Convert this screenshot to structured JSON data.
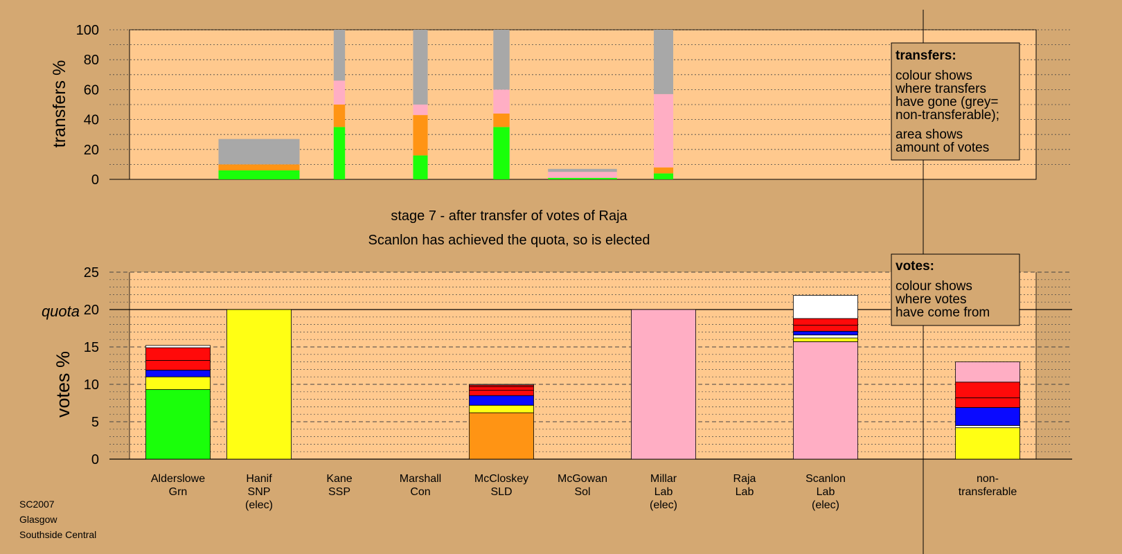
{
  "colors": {
    "page_bg": "#d4a872",
    "plot_bg": "#ffc98e",
    "green": "#1aff0a",
    "yellow": "#ffff14",
    "orange": "#ff9414",
    "pink": "#ffaec4",
    "grey": "#a8a8a8",
    "red": "#ff0a0a",
    "blue": "#0a0aff",
    "white": "#ffffff"
  },
  "caption": {
    "stage": "stage 7 - after transfer of votes of Raja",
    "result": "Scanlon has achieved the quota, so is elected"
  },
  "footer": [
    "SC2007",
    "Glasgow",
    "Southside Central"
  ],
  "legend_transfers": {
    "title": "transfers:",
    "lines": [
      "colour shows",
      "where transfers",
      "have gone (grey=",
      "non-transferable);"
    ],
    "lines2": [
      "area shows",
      "amount of votes"
    ]
  },
  "legend_votes": {
    "title": "votes:",
    "lines": [
      "colour shows",
      "where votes",
      "have come from"
    ]
  },
  "candidates": [
    [
      "Alderslowe",
      "Grn"
    ],
    [
      "Hanif",
      "SNP",
      "(elec)"
    ],
    [
      "Kane",
      "SSP"
    ],
    [
      "Marshall",
      "Con"
    ],
    [
      "McCloskey",
      "SLD"
    ],
    [
      "McGowan",
      "Sol"
    ],
    [
      "Millar",
      "Lab",
      "(elec)"
    ],
    [
      "Raja",
      "Lab"
    ],
    [
      "Scanlon",
      "Lab",
      "(elec)"
    ],
    [
      "non-",
      "transferable"
    ]
  ],
  "chart_data": [
    {
      "type": "bar",
      "stacked": true,
      "panel": "transfers",
      "ylabel": "transfers %",
      "ylim": [
        0,
        100
      ],
      "yticks": [
        0,
        20,
        40,
        60,
        80,
        100
      ],
      "grid": true,
      "bars": [
        {
          "width_ratio": 1.0,
          "segments": [
            [
              "green",
              6
            ],
            [
              "orange",
              4
            ],
            [
              "grey",
              17
            ]
          ]
        },
        {
          "width_ratio": 0.14,
          "segments": [
            [
              "green",
              35
            ],
            [
              "orange",
              15
            ],
            [
              "pink",
              16
            ],
            [
              "grey",
              34
            ]
          ]
        },
        {
          "width_ratio": 0.18,
          "segments": [
            [
              "green",
              16
            ],
            [
              "orange",
              27
            ],
            [
              "pink",
              7
            ],
            [
              "grey",
              50
            ]
          ]
        },
        {
          "width_ratio": 0.2,
          "segments": [
            [
              "green",
              35
            ],
            [
              "orange",
              9
            ],
            [
              "pink",
              16
            ],
            [
              "grey",
              40
            ]
          ]
        },
        {
          "width_ratio": 0.85,
          "segments": [
            [
              "green",
              1
            ],
            [
              "pink",
              4
            ],
            [
              "grey",
              2
            ]
          ]
        },
        {
          "width_ratio": 0.24,
          "segments": [
            [
              "green",
              4
            ],
            [
              "orange",
              4
            ],
            [
              "pink",
              49
            ],
            [
              "grey",
              43
            ]
          ]
        }
      ]
    },
    {
      "type": "bar",
      "stacked": true,
      "panel": "votes",
      "ylabel": "votes %",
      "ylim": [
        0,
        25
      ],
      "yticks": [
        0,
        5,
        10,
        15,
        20,
        25
      ],
      "quota": 20,
      "quota_label": "quota",
      "grid": true,
      "bars": [
        {
          "segments": [
            [
              "green",
              9.3
            ],
            [
              "yellow",
              1.7
            ],
            [
              "blue",
              0.9
            ],
            [
              "red",
              1.3
            ],
            [
              "red",
              1.7
            ],
            [
              "white",
              0.3
            ]
          ]
        },
        {
          "segments": [
            [
              "yellow",
              20
            ]
          ]
        },
        {
          "segments": []
        },
        {
          "segments": []
        },
        {
          "segments": [
            [
              "orange",
              6.2
            ],
            [
              "yellow",
              1.0
            ],
            [
              "blue",
              1.3
            ],
            [
              "red",
              0.7
            ],
            [
              "red",
              0.5
            ],
            [
              "red",
              0.2
            ],
            [
              "white",
              0.1
            ]
          ]
        },
        {
          "segments": []
        },
        {
          "segments": [
            [
              "pink",
              20
            ]
          ]
        },
        {
          "segments": []
        },
        {
          "segments": [
            [
              "pink",
              15.7
            ],
            [
              "yellow",
              0.5
            ],
            [
              "white",
              0.4
            ],
            [
              "blue",
              0.5
            ],
            [
              "red",
              0.8
            ],
            [
              "red",
              0.9
            ],
            [
              "white",
              3.1
            ]
          ]
        },
        {
          "segments": [
            [
              "yellow",
              4.2
            ],
            [
              "white",
              0.3
            ],
            [
              "blue",
              2.4
            ],
            [
              "red",
              1.3
            ],
            [
              "red",
              2.1
            ],
            [
              "pink",
              2.7
            ]
          ]
        }
      ]
    }
  ]
}
